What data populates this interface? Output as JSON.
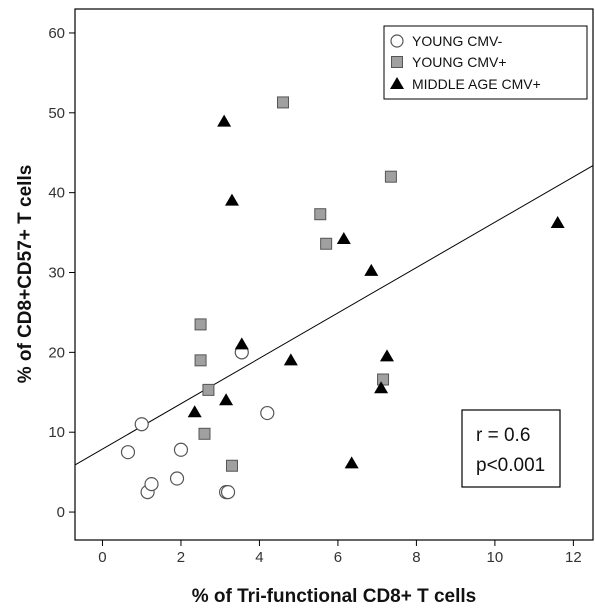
{
  "chart_data": {
    "type": "scatter",
    "xlabel": "% of Tri-functional CD8+ T cells",
    "ylabel": "% of CD8+CD57+ T cells",
    "xlim": [
      -0.7,
      12.5
    ],
    "ylim": [
      -3.5,
      63
    ],
    "xticks": [
      0,
      2,
      4,
      6,
      8,
      10,
      12
    ],
    "yticks": [
      0,
      10,
      20,
      30,
      40,
      50,
      60
    ],
    "grid": false,
    "legend_position": "top-right",
    "series": [
      {
        "name": "YOUNG CMV-",
        "marker": "open-circle",
        "color": "#ffffff",
        "x": [
          0.65,
          1.0,
          1.15,
          1.25,
          1.9,
          2.0,
          3.15,
          3.2,
          3.55,
          4.2
        ],
        "y": [
          7.5,
          11.0,
          2.5,
          3.5,
          4.2,
          7.8,
          2.5,
          2.5,
          20.0,
          12.4
        ]
      },
      {
        "name": "YOUNG CMV+",
        "marker": "square",
        "color": "#a0a0a0",
        "x": [
          2.5,
          2.5,
          2.6,
          2.7,
          3.3,
          4.6,
          5.55,
          5.7,
          7.15,
          7.35
        ],
        "y": [
          23.5,
          19.0,
          9.8,
          15.3,
          5.8,
          51.3,
          37.3,
          33.6,
          16.6,
          42.0
        ]
      },
      {
        "name": "MIDDLE AGE CMV+",
        "marker": "triangle",
        "color": "#000000",
        "x": [
          2.35,
          3.1,
          3.15,
          3.3,
          3.55,
          4.8,
          6.15,
          6.35,
          6.85,
          7.1,
          7.25,
          11.6
        ],
        "y": [
          12.5,
          48.9,
          14.0,
          39.0,
          21.0,
          19.0,
          34.2,
          6.1,
          30.2,
          15.5,
          19.5,
          36.2
        ]
      }
    ],
    "fit_line": {
      "x": [
        -0.7,
        12.5
      ],
      "y": [
        5.9,
        43.4
      ]
    },
    "annotation": {
      "line1": "r = 0.6",
      "line2": "p<0.001",
      "position": "bottom-right"
    }
  }
}
